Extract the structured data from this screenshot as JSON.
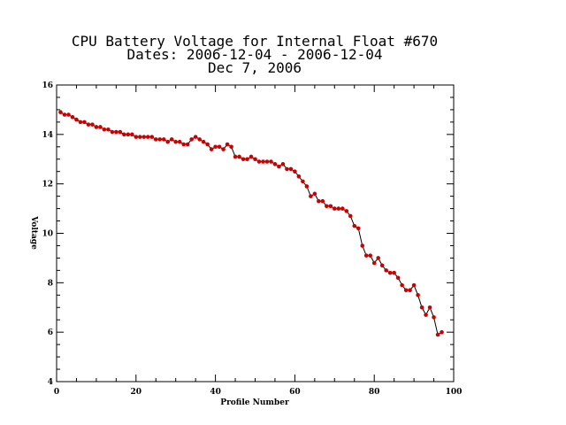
{
  "chart_data": {
    "type": "line",
    "title_lines": [
      "CPU Battery Voltage for Internal Float #670",
      "Dates:  2006-12-04 -  2006-12-04",
      "Dec  7, 2006"
    ],
    "xlabel": "Profile Number",
    "ylabel": "Voltage",
    "xlim": [
      0,
      100
    ],
    "ylim": [
      4,
      16
    ],
    "x_ticks": [
      "0",
      "20",
      "40",
      "60",
      "80",
      "100"
    ],
    "y_ticks": [
      "4",
      "6",
      "8",
      "10",
      "12",
      "14",
      "16"
    ],
    "line_color": "#000000",
    "marker_color": "#cc0000",
    "x": [
      1,
      2,
      3,
      4,
      5,
      6,
      7,
      8,
      9,
      10,
      11,
      12,
      13,
      14,
      15,
      16,
      17,
      18,
      19,
      20,
      21,
      22,
      23,
      24,
      25,
      26,
      27,
      28,
      29,
      30,
      31,
      32,
      33,
      34,
      35,
      36,
      37,
      38,
      39,
      40,
      41,
      42,
      43,
      44,
      45,
      46,
      47,
      48,
      49,
      50,
      51,
      52,
      53,
      54,
      55,
      56,
      57,
      58,
      59,
      60,
      61,
      62,
      63,
      64,
      65,
      66,
      67,
      68,
      69,
      70,
      71,
      72,
      73,
      74,
      75,
      76,
      77,
      78,
      79,
      80,
      81,
      82,
      83,
      84,
      85,
      86,
      87,
      88,
      89,
      90,
      91,
      92,
      93,
      94,
      95,
      96,
      97
    ],
    "values": [
      14.9,
      14.8,
      14.8,
      14.7,
      14.6,
      14.5,
      14.5,
      14.4,
      14.4,
      14.3,
      14.3,
      14.2,
      14.2,
      14.1,
      14.1,
      14.1,
      14.0,
      14.0,
      14.0,
      13.9,
      13.9,
      13.9,
      13.9,
      13.9,
      13.8,
      13.8,
      13.8,
      13.7,
      13.8,
      13.7,
      13.7,
      13.6,
      13.6,
      13.8,
      13.9,
      13.8,
      13.7,
      13.6,
      13.4,
      13.5,
      13.5,
      13.4,
      13.6,
      13.5,
      13.1,
      13.1,
      13.0,
      13.0,
      13.1,
      13.0,
      12.9,
      12.9,
      12.9,
      12.9,
      12.8,
      12.7,
      12.8,
      12.6,
      12.6,
      12.5,
      12.3,
      12.1,
      11.9,
      11.5,
      11.6,
      11.3,
      11.3,
      11.1,
      11.1,
      11.0,
      11.0,
      11.0,
      10.9,
      10.7,
      10.3,
      10.2,
      9.5,
      9.1,
      9.1,
      8.8,
      9.0,
      8.7,
      8.5,
      8.4,
      8.4,
      8.2,
      7.9,
      7.7,
      7.7,
      7.9,
      7.5,
      7.0,
      6.7,
      7.0,
      6.6,
      5.9,
      6.0
    ]
  }
}
